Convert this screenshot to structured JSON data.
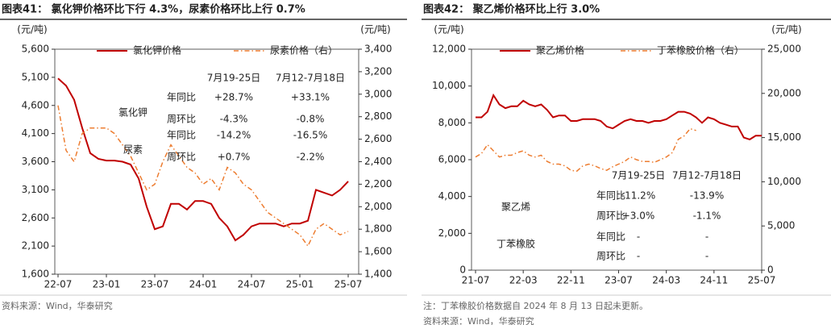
{
  "chart_data": [
    {
      "type": "line",
      "title": "图表41： 氯化钾价格环比下行 4.3%，尿素价格环比上行 0.7%",
      "y_axis_label": "(元/吨)",
      "y2_axis_label": "(元/吨)",
      "categories": [
        "22-07",
        "22-08",
        "22-09",
        "22-10",
        "22-11",
        "22-12",
        "23-01",
        "23-02",
        "23-03",
        "23-04",
        "23-05",
        "23-06",
        "23-07",
        "23-08",
        "23-09",
        "23-10",
        "23-11",
        "23-12",
        "24-01",
        "24-02",
        "24-03",
        "24-04",
        "24-05",
        "24-06",
        "24-07",
        "24-08",
        "24-09",
        "24-10",
        "24-11",
        "24-12",
        "25-01",
        "25-02",
        "25-03",
        "25-04",
        "25-05",
        "25-06",
        "25-07"
      ],
      "xticks": [
        "22-07",
        "23-01",
        "23-07",
        "24-01",
        "24-07",
        "25-01",
        "25-07"
      ],
      "ylim": [
        1600,
        5600
      ],
      "yticks": [
        {
          "value": 1600,
          "label": "1,600"
        },
        {
          "value": 2100,
          "label": "2,100"
        },
        {
          "value": 2600,
          "label": "2,600"
        },
        {
          "value": 3100,
          "label": "3,100"
        },
        {
          "value": 3600,
          "label": "3,600"
        },
        {
          "value": 4100,
          "label": "4,100"
        },
        {
          "value": 4600,
          "label": "4,600"
        },
        {
          "value": 5100,
          "label": "5,100"
        },
        {
          "value": 5600,
          "label": "5,600"
        }
      ],
      "y2lim": [
        1400,
        3400
      ],
      "y2ticks": [
        {
          "value": 1400,
          "label": "1,400"
        },
        {
          "value": 1600,
          "label": "1,600"
        },
        {
          "value": 1800,
          "label": "1,800"
        },
        {
          "value": 2000,
          "label": "2,000"
        },
        {
          "value": 2200,
          "label": "2,200"
        },
        {
          "value": 2400,
          "label": "2,400"
        },
        {
          "value": 2600,
          "label": "2,600"
        },
        {
          "value": 2800,
          "label": "2,800"
        },
        {
          "value": 3000,
          "label": "3,000"
        },
        {
          "value": 3200,
          "label": "3,200"
        },
        {
          "value": 3400,
          "label": "3,400"
        }
      ],
      "series": [
        {
          "name": "氯化钾价格",
          "color": "#c00000",
          "line_style": "solid",
          "values": [
            5080,
            4950,
            4700,
            4200,
            3750,
            3650,
            3620,
            3620,
            3600,
            3550,
            3300,
            2800,
            2400,
            2450,
            2850,
            2850,
            2750,
            2900,
            2900,
            2850,
            2600,
            2450,
            2200,
            2300,
            2450,
            2500,
            2500,
            2500,
            2450,
            2500,
            2500,
            2550,
            3100,
            3050,
            3000,
            3100,
            3250
          ]
        },
        {
          "name": "尿素价格（右）",
          "color": "#ed7d31",
          "line_style": "dashdot",
          "axis": "y2",
          "values": [
            2900,
            2500,
            2400,
            2650,
            2700,
            2700,
            2700,
            2650,
            2550,
            2450,
            2300,
            2150,
            2200,
            2400,
            2550,
            2450,
            2350,
            2300,
            2200,
            2250,
            2150,
            2350,
            2300,
            2200,
            2150,
            2050,
            1950,
            1900,
            1850,
            1800,
            1750,
            1650,
            1800,
            1850,
            1800,
            1750,
            1780
          ]
        }
      ],
      "legend": "top",
      "annotation_table": {
        "headers": [
          "7月19-25日",
          "7月12-7月18日"
        ],
        "groups": [
          {
            "name": "氯化钾",
            "rows": [
              {
                "label": "年同比",
                "values": [
                  "+28.7%",
                  "+33.1%"
                ]
              },
              {
                "label": "周环比",
                "values": [
                  "-4.3%",
                  "-0.8%"
                ]
              }
            ]
          },
          {
            "name": "尿素",
            "rows": [
              {
                "label": "年同比",
                "values": [
                  "-14.2%",
                  "-16.5%"
                ]
              },
              {
                "label": "周环比",
                "values": [
                  "+0.7%",
                  "-2.2%"
                ]
              }
            ]
          }
        ]
      },
      "source": "资料来源：Wind，华泰研究"
    },
    {
      "type": "line",
      "title": "图表42： 聚乙烯价格环比上行 3.0%",
      "y_axis_label": "(元/吨)",
      "y2_axis_label": "(元/吨)",
      "categories": [
        "21-07",
        "21-08",
        "21-09",
        "21-10",
        "21-11",
        "21-12",
        "22-01",
        "22-02",
        "22-03",
        "22-04",
        "22-05",
        "22-06",
        "22-07",
        "22-08",
        "22-09",
        "22-10",
        "22-11",
        "22-12",
        "23-01",
        "23-02",
        "23-03",
        "23-04",
        "23-05",
        "23-06",
        "23-07",
        "23-08",
        "23-09",
        "23-10",
        "23-11",
        "23-12",
        "24-01",
        "24-02",
        "24-03",
        "24-04",
        "24-05",
        "24-06",
        "24-07",
        "24-08",
        "24-09",
        "24-10",
        "24-11",
        "24-12",
        "25-01",
        "25-02",
        "25-03",
        "25-04",
        "25-05",
        "25-06",
        "25-07"
      ],
      "xticks": [
        "21-07",
        "22-03",
        "22-11",
        "23-07",
        "24-03",
        "24-11",
        "25-07"
      ],
      "ylim": [
        0,
        12000
      ],
      "yticks": [
        0,
        {
          "value": 2000,
          "label": "2,000"
        },
        {
          "value": 4000,
          "label": "4,000"
        },
        {
          "value": 6000,
          "label": "6,000"
        },
        {
          "value": 8000,
          "label": "8,000"
        },
        {
          "value": 10000,
          "label": "10,000"
        },
        {
          "value": 12000,
          "label": "12,000"
        }
      ],
      "y2lim": [
        0,
        25000
      ],
      "y2ticks": [
        0,
        {
          "value": 5000,
          "label": "5,000"
        },
        {
          "value": 10000,
          "label": "10,000"
        },
        {
          "value": 15000,
          "label": "15,000"
        },
        {
          "value": 20000,
          "label": "20,000"
        },
        {
          "value": 25000,
          "label": "25,000"
        }
      ],
      "series": [
        {
          "name": "聚乙烯价格",
          "color": "#c00000",
          "line_style": "solid",
          "values": [
            8300,
            8300,
            8600,
            9500,
            9000,
            8800,
            8900,
            8900,
            9200,
            9000,
            8900,
            9000,
            8700,
            8300,
            8400,
            8400,
            8100,
            8100,
            8200,
            8200,
            8200,
            8100,
            7800,
            7700,
            7900,
            8100,
            8200,
            8100,
            8100,
            8000,
            8100,
            8100,
            8200,
            8400,
            8600,
            8600,
            8500,
            8300,
            8000,
            8300,
            8200,
            8000,
            7900,
            7800,
            7800,
            7200,
            7100,
            7300,
            7300
          ]
        },
        {
          "name": "丁苯橡胶价格（右）",
          "color": "#ed7d31",
          "line_style": "dashdot",
          "axis": "y2",
          "values": [
            12800,
            13200,
            14200,
            13500,
            12800,
            13000,
            13000,
            13300,
            13500,
            13000,
            12800,
            13000,
            12300,
            12000,
            12000,
            11800,
            11300,
            11200,
            11800,
            12000,
            11800,
            11500,
            11300,
            11700,
            12000,
            12300,
            12800,
            12500,
            12300,
            12300,
            12200,
            12500,
            12800,
            13300,
            14800,
            15200,
            16000,
            15800,
            null,
            null,
            null,
            null,
            null,
            null,
            null,
            null,
            null,
            null,
            null
          ]
        }
      ],
      "legend": "top",
      "annotation_table": {
        "headers": [
          "7月19-25日",
          "7月12-7月18日"
        ],
        "groups": [
          {
            "name": "聚乙烯",
            "rows": [
              {
                "label": "年同比",
                "values": [
                  "-11.2%",
                  "-13.9%"
                ]
              },
              {
                "label": "周环比",
                "values": [
                  "+3.0%",
                  "-1.1%"
                ]
              }
            ]
          },
          {
            "name": "丁苯橡胶",
            "rows": [
              {
                "label": "年同比",
                "values": [
                  "-",
                  "-"
                ]
              },
              {
                "label": "周环比",
                "values": [
                  "-",
                  "-"
                ]
              }
            ]
          }
        ]
      },
      "note": "注：丁苯橡胶价格数据自 2024 年 8 月 13 日起未更新。",
      "source": "资料来源：Wind，华泰研究"
    }
  ]
}
